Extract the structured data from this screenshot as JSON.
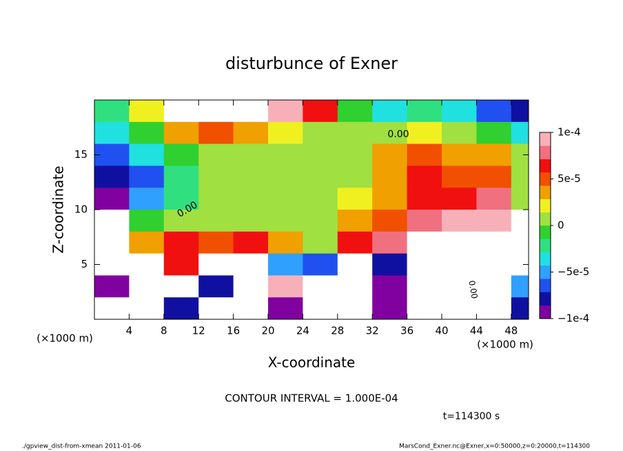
{
  "chart_data": {
    "type": "heatmap",
    "title": "disturbunce of Exner",
    "x_label": "X-coordinate",
    "y_label": "Z-coordinate",
    "x_unit": "(×1000 m)",
    "y_unit": "(×1000 m)",
    "contour_interval": "CONTOUR INTERVAL = 1.000E-04",
    "time_label": "t=114300 s",
    "footer_left": "./gpview_dist-from-xmean  2011-01-06",
    "footer_right": "MarsCond_Exner.nc@Exner,x=0:50000,z=0:20000,t=114300",
    "contour_labels": [
      "0.00",
      "0.00",
      "0.00"
    ],
    "x": [
      2,
      6,
      10,
      14,
      18,
      22,
      26,
      30,
      34,
      38,
      42,
      46,
      50
    ],
    "z": [
      19,
      17,
      15,
      13,
      11,
      9,
      7,
      5,
      3,
      1
    ],
    "values": [
      [
        -2e-05,
        2e-05,
        0.00012,
        0.00015,
        0.00012,
        9e-05,
        6e-05,
        -1e-05,
        -3e-05,
        -2e-05,
        -4e-05,
        -6e-05,
        -8e-05
      ],
      [
        -3e-05,
        -1e-05,
        3e-05,
        5e-05,
        4e-05,
        2e-05,
        1e-05,
        0,
        1e-05,
        2e-05,
        1e-05,
        -1e-05,
        -3e-05
      ],
      [
        -7e-05,
        -3e-05,
        -1e-05,
        0,
        0,
        1e-05,
        1e-05,
        1e-05,
        3e-05,
        5e-05,
        4e-05,
        3e-05,
        0
      ],
      [
        -8e-05,
        -6e-05,
        -2e-05,
        0,
        0,
        0,
        0,
        1e-05,
        3e-05,
        6e-05,
        5e-05,
        5e-05,
        0
      ],
      [
        -9e-05,
        -5e-05,
        -2e-05,
        0,
        0,
        0,
        0,
        2e-05,
        4e-05,
        6e-05,
        7e-05,
        8e-05,
        1e-05
      ],
      [
        -0.00015,
        -1e-05,
        1e-05,
        1e-05,
        1e-05,
        0,
        0,
        3e-05,
        5e-05,
        8e-05,
        9e-05,
        9e-05,
        -0.00015
      ],
      [
        -0.00015,
        4e-05,
        6e-05,
        5e-05,
        6e-05,
        4e-05,
        1e-05,
        6e-05,
        8e-05,
        0.00012,
        0.00014,
        0.00013,
        -0.00015
      ],
      [
        -0.00015,
        0.00014,
        7e-05,
        0.00013,
        0.00012,
        -5e-05,
        -6e-05,
        0.00013,
        -8e-05,
        0.00012,
        -0.00015,
        0.00012,
        -0.00015
      ],
      [
        -9e-05,
        0.00015,
        0.00013,
        -8e-05,
        0.00015,
        9e-05,
        0.00015,
        0.00014,
        -0.0001,
        0.00013,
        -0.00015,
        -0.00015,
        -5e-05
      ],
      [
        -0.00015,
        0.00012,
        -8e-05,
        0.00015,
        0.00013,
        -9e-05,
        0.00014,
        0.00012,
        -9e-05,
        0.00014,
        -0.00015,
        -0.00012,
        -8e-05
      ]
    ],
    "xlim": [
      0,
      50
    ],
    "ylim": [
      0,
      20
    ],
    "xticks": [
      4,
      8,
      12,
      16,
      20,
      24,
      28,
      32,
      36,
      40,
      44,
      48
    ],
    "yticks": [
      5,
      10,
      15
    ],
    "clim": [
      -0.0001,
      0.0001
    ],
    "cticks": [
      {
        "value": -0.0001,
        "label": "−1e-4"
      },
      {
        "value": -5e-05,
        "label": "−5e-5"
      },
      0,
      {
        "value": 5e-05,
        "label": "5e-5"
      },
      {
        "value": 0.0001,
        "label": "1e-4"
      }
    ],
    "colormap": [
      "#8000a0",
      "#1010a0",
      "#2050f0",
      "#30a0ff",
      "#20e0e0",
      "#30e080",
      "#30d030",
      "#a0e040",
      "#f0f020",
      "#f0a000",
      "#f05000",
      "#f01010",
      "#f07080",
      "#f8b0b8"
    ],
    "out_of_range_color": "#ffffff"
  }
}
